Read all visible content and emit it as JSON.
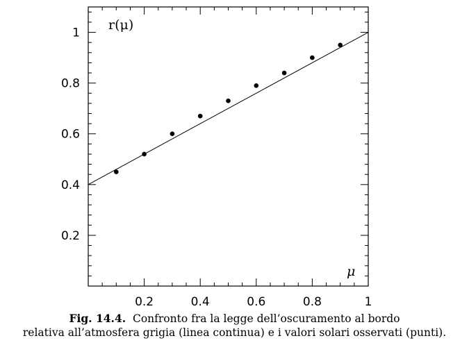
{
  "chart_data": {
    "type": "scatter",
    "title": "",
    "xlabel": "μ",
    "ylabel": "r(μ)",
    "xlim": [
      0,
      1
    ],
    "ylim": [
      0,
      1.1
    ],
    "x_ticks": [
      "0.2",
      "0.4",
      "0.6",
      "0.8",
      "1"
    ],
    "y_ticks": [
      "0.2",
      "0.4",
      "0.6",
      "0.8",
      "1"
    ],
    "grid": false,
    "series": [
      {
        "kind": "line",
        "x": [
          0,
          1
        ],
        "y": [
          0.4,
          1.0
        ]
      },
      {
        "kind": "points",
        "x": [
          0.1,
          0.2,
          0.3,
          0.4,
          0.5,
          0.6,
          0.7,
          0.8,
          0.9
        ],
        "y": [
          0.45,
          0.52,
          0.6,
          0.67,
          0.73,
          0.79,
          0.84,
          0.9,
          0.95
        ]
      }
    ]
  },
  "caption": {
    "label": "Fig. 14.4.",
    "line1": "Confronto fra la legge dell’oscuramento al bordo",
    "line2": "relativa all’atmosfera grigia (linea continua) e i valori solari osservati (punti)."
  }
}
